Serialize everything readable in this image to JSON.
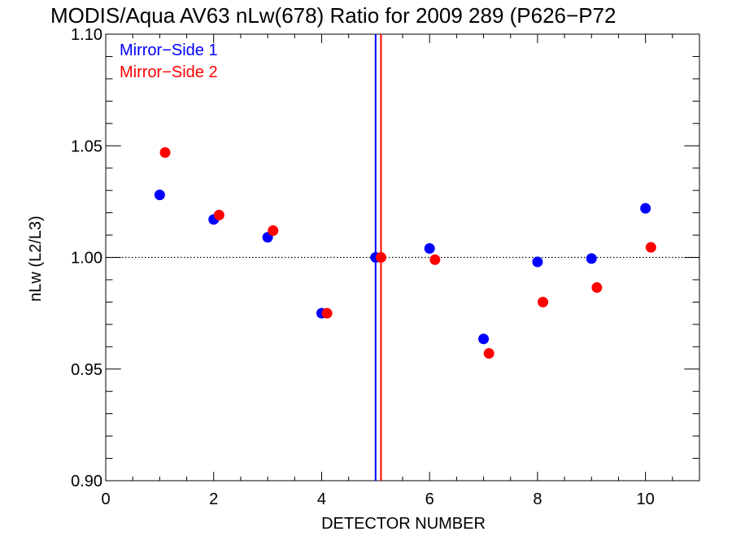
{
  "chart_data": {
    "type": "scatter",
    "title": "MODIS/Aqua AV63 nLw(678) Ratio for 2009 289 (P626−P72",
    "xlabel": "DETECTOR NUMBER",
    "ylabel": "nLw (L2/L3)",
    "xlim": [
      0,
      11
    ],
    "ylim": [
      0.9,
      1.1
    ],
    "x_ticks": [
      0,
      2,
      4,
      6,
      8,
      10
    ],
    "x_tick_labels": [
      "0",
      "2",
      "4",
      "6",
      "8",
      "10"
    ],
    "y_ticks": [
      0.9,
      0.95,
      1.0,
      1.05,
      1.1
    ],
    "y_tick_labels": [
      "0.90",
      "0.95",
      "1.00",
      "1.05",
      "1.10"
    ],
    "x_minor_step": 0.5,
    "y_minor_step": 0.01,
    "reference_line": {
      "y": 1.0,
      "style": "dotted"
    },
    "legend_position": "top-left",
    "grid": false,
    "series": [
      {
        "name": "Mirror−Side 1",
        "color": "#0000ff",
        "x": [
          1,
          2,
          3,
          4,
          5,
          6,
          7,
          8,
          9,
          10
        ],
        "y": [
          1.028,
          1.017,
          1.009,
          0.975,
          1.0,
          1.004,
          0.9635,
          0.998,
          0.9995,
          1.022
        ],
        "vline_x": 5.0
      },
      {
        "name": "Mirror−Side 2",
        "color": "#ff0000",
        "x": [
          1.1,
          2.1,
          3.1,
          4.1,
          5.1,
          6.1,
          7.1,
          8.1,
          9.1,
          10.1
        ],
        "y": [
          1.047,
          1.019,
          1.012,
          0.975,
          1.0,
          0.999,
          0.957,
          0.98,
          0.9865,
          1.0045
        ],
        "vline_x": 5.1
      }
    ]
  }
}
